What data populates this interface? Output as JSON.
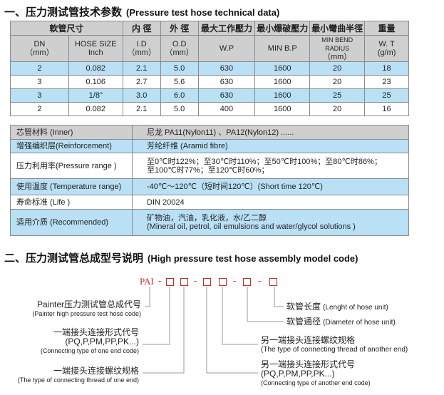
{
  "section1": {
    "title": "一、压力测试管技术参数",
    "title_en": "(Pressure test hose technical data)"
  },
  "table1": {
    "header1": [
      "軟管尺寸",
      "内 徑",
      "外 徑",
      "最大工作壓力",
      "最小爆破壓力",
      "最小彎曲半徑",
      "重量"
    ],
    "header2": [
      [
        "DN",
        "（mm）"
      ],
      [
        "HOSE SIZE",
        "Inch"
      ],
      [
        "I.D",
        "（mm）"
      ],
      [
        "O.D",
        "（mm）"
      ],
      [
        "W.P",
        ""
      ],
      [
        "MIN   B.P",
        ""
      ],
      [
        "MIN BEND  RADIUS",
        "（mm）"
      ],
      [
        "W. T",
        "(g/m)"
      ]
    ],
    "rows": [
      [
        "2",
        "0.082",
        "2.1",
        "5.0",
        "630",
        "1600",
        "20",
        "18"
      ],
      [
        "3",
        "0.106",
        "2.7",
        "5.6",
        "630",
        "1600",
        "20",
        "23"
      ],
      [
        "3",
        "1/8\"",
        "3.0",
        "6.0",
        "630",
        "1600",
        "25",
        "25"
      ],
      [
        "2",
        "0.082",
        "2.1",
        "5.0",
        "400",
        "1600",
        "20",
        "16"
      ]
    ]
  },
  "table2": {
    "rows": [
      {
        "label": "芯管材料 (Inner)",
        "value": [
          "尼龙 PA11(Nylon11) 、PA12(Nylon12) ......"
        ]
      },
      {
        "label": "增强编织层(Reinforcement)",
        "value": [
          "芳纶纤维 (Aramid fibre)"
        ]
      },
      {
        "label": "压力利用率(Pressure range )",
        "value": [
          "至0℃时122%；至30℃时110%；至50℃时100%；至80℃时86%；",
          "至100℃时77%；至120℃时60%；"
        ]
      },
      {
        "label": "使用温度 (Temperature range)",
        "value": [
          "-40℃～120℃（短时间120℃）(Short time 120℃)"
        ]
      },
      {
        "label": "寿命标准 (Life )",
        "value": [
          "DIN 20024"
        ]
      },
      {
        "label": "适用介质 (Recommended)",
        "value": [
          "矿物油，汽油，乳化液，水/乙二醇",
          "(Mineral oil, petrol, oil emulsions and water/glycol solutions )"
        ]
      }
    ]
  },
  "section2": {
    "title": "二、压力测试管总成型号说明",
    "title_en": "(High pressure test hose assembly model code)"
  },
  "model": {
    "prefix": "PAI",
    "dash": "-",
    "labels": [
      {
        "cn": "Painter压力测试管总成代号",
        "en": "(Painter high pressure test hose code)"
      },
      {
        "cn": "一端接头连接形式代号",
        "cn2": "(PQ,P,PM,PP,PK...)",
        "en": "(Connecting type of one end code)"
      },
      {
        "cn": "一端接头连接螺纹规格",
        "en": "(The type of connecting thread of one end)"
      },
      {
        "cn": "另一端接头连接形式代号",
        "cn2": "(PQ,P,PM,PP,PK...)",
        "en": "(Connecting type of another end code)"
      },
      {
        "cn": "另一端接头连接螺纹规格",
        "en": "(The type of connecting thread of another end)"
      },
      {
        "cn": "软管通径",
        "en": "(Diameter of hose unit)"
      },
      {
        "cn": "软管长度",
        "en": "(Lenght of hose unit)"
      }
    ]
  },
  "colors": {
    "header": "#cfcfcf",
    "highlight": "#b9e0f4",
    "code": "#b3332c"
  }
}
